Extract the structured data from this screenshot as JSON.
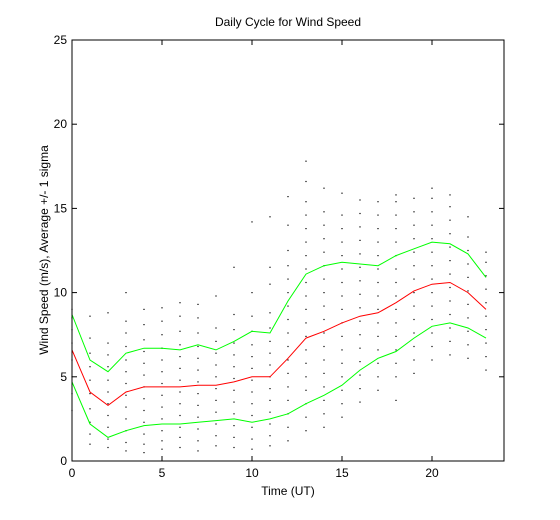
{
  "chart_data": {
    "type": "line",
    "title": "Daily Cycle for Wind Speed",
    "xlabel": "Time (UT)",
    "ylabel": "Wind Speed (m/s), Average +/- 1 sigma",
    "xlim": [
      0,
      24
    ],
    "ylim": [
      0,
      25
    ],
    "xticks": [
      0,
      5,
      10,
      15,
      20
    ],
    "yticks": [
      0,
      5,
      10,
      15,
      20,
      25
    ],
    "grid": false,
    "x": [
      0,
      1,
      2,
      3,
      4,
      5,
      6,
      7,
      8,
      9,
      10,
      11,
      12,
      13,
      14,
      15,
      16,
      17,
      18,
      19,
      20,
      21,
      22,
      23
    ],
    "series": [
      {
        "role": "mean",
        "color": "#ff0000",
        "values": [
          6.6,
          4.1,
          3.3,
          4.1,
          4.4,
          4.4,
          4.4,
          4.5,
          4.5,
          4.7,
          5.0,
          5.0,
          6.1,
          7.3,
          7.7,
          8.2,
          8.6,
          8.8,
          9.4,
          10.1,
          10.5,
          10.6,
          10.0,
          9.0
        ]
      },
      {
        "role": "mean_plus_sigma",
        "color": "#00ff00",
        "values": [
          8.7,
          6.0,
          5.3,
          6.4,
          6.7,
          6.7,
          6.6,
          6.9,
          6.6,
          7.1,
          7.7,
          7.6,
          9.5,
          11.1,
          11.6,
          11.8,
          11.7,
          11.6,
          12.2,
          12.6,
          13.0,
          12.9,
          12.3,
          10.9
        ]
      },
      {
        "role": "mean_minus_sigma",
        "color": "#00ff00",
        "values": [
          4.7,
          2.2,
          1.4,
          1.8,
          2.1,
          2.2,
          2.2,
          2.3,
          2.4,
          2.5,
          2.3,
          2.5,
          2.8,
          3.4,
          3.9,
          4.5,
          5.4,
          6.1,
          6.5,
          7.3,
          8.0,
          8.2,
          7.9,
          7.3
        ]
      }
    ],
    "scatter": {
      "color": "#000000",
      "points": [
        [
          0,
          3.0
        ],
        [
          0,
          4.0
        ],
        [
          0,
          5.0
        ],
        [
          0,
          6.0
        ],
        [
          0,
          7.0
        ],
        [
          0,
          7.8
        ],
        [
          0,
          8.5
        ],
        [
          0,
          9.0
        ],
        [
          1,
          1.0
        ],
        [
          1,
          1.6
        ],
        [
          1,
          2.3
        ],
        [
          1,
          3.1
        ],
        [
          1,
          4.0
        ],
        [
          1,
          4.8
        ],
        [
          1,
          5.6
        ],
        [
          1,
          6.4
        ],
        [
          1,
          7.3
        ],
        [
          1,
          8.6
        ],
        [
          2,
          0.8
        ],
        [
          2,
          1.3
        ],
        [
          2,
          2.0
        ],
        [
          2,
          2.7
        ],
        [
          2,
          3.4
        ],
        [
          2,
          4.1
        ],
        [
          2,
          4.8
        ],
        [
          2,
          5.6
        ],
        [
          2,
          6.3
        ],
        [
          2,
          7.0
        ],
        [
          2,
          8.8
        ],
        [
          3,
          0.6
        ],
        [
          3,
          1.1
        ],
        [
          3,
          1.8
        ],
        [
          3,
          2.5
        ],
        [
          3,
          3.2
        ],
        [
          3,
          3.9
        ],
        [
          3,
          4.6
        ],
        [
          3,
          5.3
        ],
        [
          3,
          6.0
        ],
        [
          3,
          6.8
        ],
        [
          3,
          7.6
        ],
        [
          3,
          8.3
        ],
        [
          3,
          10.0
        ],
        [
          4,
          0.5
        ],
        [
          4,
          1.0
        ],
        [
          4,
          1.6
        ],
        [
          4,
          2.3
        ],
        [
          4,
          3.0
        ],
        [
          4,
          3.7
        ],
        [
          4,
          4.4
        ],
        [
          4,
          5.1
        ],
        [
          4,
          5.8
        ],
        [
          4,
          6.5
        ],
        [
          4,
          7.2
        ],
        [
          4,
          8.1
        ],
        [
          4,
          9.0
        ],
        [
          5,
          0.7
        ],
        [
          5,
          1.2
        ],
        [
          5,
          1.8
        ],
        [
          5,
          2.5
        ],
        [
          5,
          3.2
        ],
        [
          5,
          3.9
        ],
        [
          5,
          4.6
        ],
        [
          5,
          5.3
        ],
        [
          5,
          6.0
        ],
        [
          5,
          6.7
        ],
        [
          5,
          7.5
        ],
        [
          5,
          8.3
        ],
        [
          5,
          9.1
        ],
        [
          6,
          0.8
        ],
        [
          6,
          1.4
        ],
        [
          6,
          2.0
        ],
        [
          6,
          2.7
        ],
        [
          6,
          3.4
        ],
        [
          6,
          4.1
        ],
        [
          6,
          4.8
        ],
        [
          6,
          5.5
        ],
        [
          6,
          6.2
        ],
        [
          6,
          6.9
        ],
        [
          6,
          7.7
        ],
        [
          6,
          8.6
        ],
        [
          6,
          9.4
        ],
        [
          7,
          0.6
        ],
        [
          7,
          1.2
        ],
        [
          7,
          1.9
        ],
        [
          7,
          2.6
        ],
        [
          7,
          3.3
        ],
        [
          7,
          4.0
        ],
        [
          7,
          4.7
        ],
        [
          7,
          5.4
        ],
        [
          7,
          6.1
        ],
        [
          7,
          6.8
        ],
        [
          7,
          7.6
        ],
        [
          7,
          8.5
        ],
        [
          7,
          9.3
        ],
        [
          8,
          0.9
        ],
        [
          8,
          1.5
        ],
        [
          8,
          2.2
        ],
        [
          8,
          2.9
        ],
        [
          8,
          3.6
        ],
        [
          8,
          4.3
        ],
        [
          8,
          5.0
        ],
        [
          8,
          5.7
        ],
        [
          8,
          6.4
        ],
        [
          8,
          7.1
        ],
        [
          8,
          7.9
        ],
        [
          8,
          9.8
        ],
        [
          9,
          0.8
        ],
        [
          9,
          1.4
        ],
        [
          9,
          2.1
        ],
        [
          9,
          2.8
        ],
        [
          9,
          3.5
        ],
        [
          9,
          4.2
        ],
        [
          9,
          4.9
        ],
        [
          9,
          5.6
        ],
        [
          9,
          6.3
        ],
        [
          9,
          7.0
        ],
        [
          9,
          7.8
        ],
        [
          9,
          8.7
        ],
        [
          9,
          11.5
        ],
        [
          10,
          0.7
        ],
        [
          10,
          1.3
        ],
        [
          10,
          2.0
        ],
        [
          10,
          2.7
        ],
        [
          10,
          3.4
        ],
        [
          10,
          4.1
        ],
        [
          10,
          4.8
        ],
        [
          10,
          5.5
        ],
        [
          10,
          6.2
        ],
        [
          10,
          6.9
        ],
        [
          10,
          7.7
        ],
        [
          10,
          8.6
        ],
        [
          10,
          10.0
        ],
        [
          10,
          14.2
        ],
        [
          11,
          0.9
        ],
        [
          11,
          1.5
        ],
        [
          11,
          2.2
        ],
        [
          11,
          2.9
        ],
        [
          11,
          3.6
        ],
        [
          11,
          4.3
        ],
        [
          11,
          5.0
        ],
        [
          11,
          5.7
        ],
        [
          11,
          6.4
        ],
        [
          11,
          7.1
        ],
        [
          11,
          7.9
        ],
        [
          11,
          8.8
        ],
        [
          11,
          10.5
        ],
        [
          11,
          11.5
        ],
        [
          11,
          14.5
        ],
        [
          12,
          1.2
        ],
        [
          12,
          2.0
        ],
        [
          12,
          2.8
        ],
        [
          12,
          3.6
        ],
        [
          12,
          4.4
        ],
        [
          12,
          5.2
        ],
        [
          12,
          6.0
        ],
        [
          12,
          6.8
        ],
        [
          12,
          7.6
        ],
        [
          12,
          8.4
        ],
        [
          12,
          9.2
        ],
        [
          12,
          10.0
        ],
        [
          12,
          10.8
        ],
        [
          12,
          11.6
        ],
        [
          12,
          12.5
        ],
        [
          12,
          14.0
        ],
        [
          12,
          15.7
        ],
        [
          13,
          1.8
        ],
        [
          13,
          2.6
        ],
        [
          13,
          3.4
        ],
        [
          13,
          4.2
        ],
        [
          13,
          5.0
        ],
        [
          13,
          5.8
        ],
        [
          13,
          6.6
        ],
        [
          13,
          7.4
        ],
        [
          13,
          8.2
        ],
        [
          13,
          9.0
        ],
        [
          13,
          9.8
        ],
        [
          13,
          10.6
        ],
        [
          13,
          11.4
        ],
        [
          13,
          12.2
        ],
        [
          13,
          13.0
        ],
        [
          13,
          13.8
        ],
        [
          13,
          14.6
        ],
        [
          13,
          15.4
        ],
        [
          13,
          16.6
        ],
        [
          13,
          17.8
        ],
        [
          14,
          2.0
        ],
        [
          14,
          2.8
        ],
        [
          14,
          3.6
        ],
        [
          14,
          4.4
        ],
        [
          14,
          5.2
        ],
        [
          14,
          6.0
        ],
        [
          14,
          6.8
        ],
        [
          14,
          7.6
        ],
        [
          14,
          8.4
        ],
        [
          14,
          9.2
        ],
        [
          14,
          10.0
        ],
        [
          14,
          10.8
        ],
        [
          14,
          11.6
        ],
        [
          14,
          12.4
        ],
        [
          14,
          13.2
        ],
        [
          14,
          14.0
        ],
        [
          14,
          14.8
        ],
        [
          14,
          16.2
        ],
        [
          15,
          2.6
        ],
        [
          15,
          3.4
        ],
        [
          15,
          4.2
        ],
        [
          15,
          5.0
        ],
        [
          15,
          5.8
        ],
        [
          15,
          6.6
        ],
        [
          15,
          7.4
        ],
        [
          15,
          8.2
        ],
        [
          15,
          9.0
        ],
        [
          15,
          9.8
        ],
        [
          15,
          10.6
        ],
        [
          15,
          11.4
        ],
        [
          15,
          12.2
        ],
        [
          15,
          13.0
        ],
        [
          15,
          13.8
        ],
        [
          15,
          14.6
        ],
        [
          15,
          15.9
        ],
        [
          16,
          3.5
        ],
        [
          16,
          4.3
        ],
        [
          16,
          5.1
        ],
        [
          16,
          5.9
        ],
        [
          16,
          6.7
        ],
        [
          16,
          7.5
        ],
        [
          16,
          8.3
        ],
        [
          16,
          9.1
        ],
        [
          16,
          9.9
        ],
        [
          16,
          10.7
        ],
        [
          16,
          11.5
        ],
        [
          16,
          12.3
        ],
        [
          16,
          13.1
        ],
        [
          16,
          13.9
        ],
        [
          16,
          14.7
        ],
        [
          16,
          15.5
        ],
        [
          17,
          4.2
        ],
        [
          17,
          5.0
        ],
        [
          17,
          5.8
        ],
        [
          17,
          6.6
        ],
        [
          17,
          7.4
        ],
        [
          17,
          8.2
        ],
        [
          17,
          9.0
        ],
        [
          17,
          9.8
        ],
        [
          17,
          10.6
        ],
        [
          17,
          11.4
        ],
        [
          17,
          12.2
        ],
        [
          17,
          13.0
        ],
        [
          17,
          13.8
        ],
        [
          17,
          14.6
        ],
        [
          17,
          15.4
        ],
        [
          18,
          3.6
        ],
        [
          18,
          5.0
        ],
        [
          18,
          5.8
        ],
        [
          18,
          6.6
        ],
        [
          18,
          7.4
        ],
        [
          18,
          8.2
        ],
        [
          18,
          9.0
        ],
        [
          18,
          9.8
        ],
        [
          18,
          10.6
        ],
        [
          18,
          11.4
        ],
        [
          18,
          12.2
        ],
        [
          18,
          13.0
        ],
        [
          18,
          13.8
        ],
        [
          18,
          14.6
        ],
        [
          18,
          15.4
        ],
        [
          18,
          15.8
        ],
        [
          19,
          5.2
        ],
        [
          19,
          6.0
        ],
        [
          19,
          6.8
        ],
        [
          19,
          7.6
        ],
        [
          19,
          8.4
        ],
        [
          19,
          9.2
        ],
        [
          19,
          10.0
        ],
        [
          19,
          10.8
        ],
        [
          19,
          11.6
        ],
        [
          19,
          12.4
        ],
        [
          19,
          13.2
        ],
        [
          19,
          14.0
        ],
        [
          19,
          14.8
        ],
        [
          19,
          15.6
        ],
        [
          20,
          6.0
        ],
        [
          20,
          6.8
        ],
        [
          20,
          7.6
        ],
        [
          20,
          8.4
        ],
        [
          20,
          9.2
        ],
        [
          20,
          10.0
        ],
        [
          20,
          10.8
        ],
        [
          20,
          11.6
        ],
        [
          20,
          12.4
        ],
        [
          20,
          13.2
        ],
        [
          20,
          14.0
        ],
        [
          20,
          14.8
        ],
        [
          20,
          15.6
        ],
        [
          20,
          16.2
        ],
        [
          21,
          6.3
        ],
        [
          21,
          7.1
        ],
        [
          21,
          7.9
        ],
        [
          21,
          8.7
        ],
        [
          21,
          9.5
        ],
        [
          21,
          10.3
        ],
        [
          21,
          11.1
        ],
        [
          21,
          11.9
        ],
        [
          21,
          12.7
        ],
        [
          21,
          13.5
        ],
        [
          21,
          14.3
        ],
        [
          21,
          15.1
        ],
        [
          21,
          15.8
        ],
        [
          22,
          6.1
        ],
        [
          22,
          6.9
        ],
        [
          22,
          7.7
        ],
        [
          22,
          8.5
        ],
        [
          22,
          9.3
        ],
        [
          22,
          10.1
        ],
        [
          22,
          10.9
        ],
        [
          22,
          11.7
        ],
        [
          22,
          12.5
        ],
        [
          22,
          13.3
        ],
        [
          22,
          14.5
        ],
        [
          23,
          5.4
        ],
        [
          23,
          6.2
        ],
        [
          23,
          7.0
        ],
        [
          23,
          7.8
        ],
        [
          23,
          8.6
        ],
        [
          23,
          9.4
        ],
        [
          23,
          10.2
        ],
        [
          23,
          11.0
        ],
        [
          23,
          11.8
        ],
        [
          23,
          12.4
        ]
      ]
    }
  }
}
